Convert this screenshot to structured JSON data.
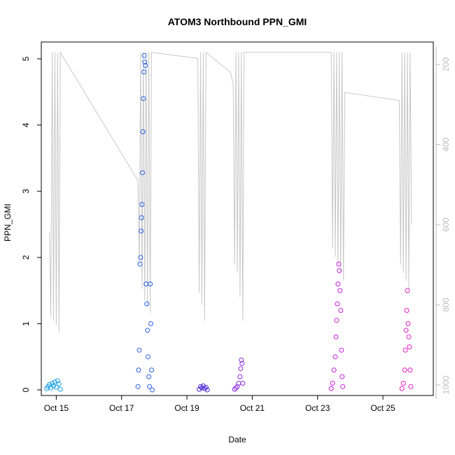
{
  "chart_data": {
    "type": "scatter",
    "title": "ATOM3 Northbound PPN_GMI",
    "xlabel": "Date",
    "ylabel": "PPN_GMI",
    "xlim": [
      "2014-10-14 13:00",
      "2014-10-26 13:00"
    ],
    "ylim": [
      0,
      5.25
    ],
    "y2lim": [
      1055,
      170
    ],
    "x_ticks": [
      {
        "label": "Oct 15",
        "date": "2014-10-15"
      },
      {
        "label": "Oct 17",
        "date": "2014-10-17"
      },
      {
        "label": "Oct 19",
        "date": "2014-10-19"
      },
      {
        "label": "Oct 21",
        "date": "2014-10-21"
      },
      {
        "label": "Oct 23",
        "date": "2014-10-23"
      },
      {
        "label": "Oct 25",
        "date": "2014-10-25"
      }
    ],
    "y_ticks": [
      "0",
      "1",
      "2",
      "3",
      "4",
      "5"
    ],
    "y2_ticks": [
      "200",
      "400",
      "600",
      "800",
      "1000"
    ],
    "grid": false,
    "series": [
      {
        "color": "#1aa0e6",
        "points": [
          {
            "date": "2014-10-14 17:00",
            "y": 0.02
          },
          {
            "date": "2014-10-14 18:00",
            "y": 0.05
          },
          {
            "date": "2014-10-14 19:00",
            "y": 0.08
          },
          {
            "date": "2014-10-14 20:00",
            "y": 0.03
          },
          {
            "date": "2014-10-14 21:00",
            "y": 0.1
          },
          {
            "date": "2014-10-14 22:00",
            "y": 0.06
          },
          {
            "date": "2014-10-14 23:00",
            "y": 0.12
          },
          {
            "date": "2014-10-15 00:00",
            "y": 0.04
          },
          {
            "date": "2014-10-15 01:00",
            "y": 0.14
          },
          {
            "date": "2014-10-15 02:00",
            "y": 0.09
          },
          {
            "date": "2014-10-15 03:00",
            "y": 0.01
          }
        ]
      },
      {
        "color": "#2a5fe6",
        "points": [
          {
            "date": "2014-10-17 12:00",
            "y": 0.05
          },
          {
            "date": "2014-10-17 12:30",
            "y": 0.3
          },
          {
            "date": "2014-10-17 13:00",
            "y": 0.6
          },
          {
            "date": "2014-10-17 13:30",
            "y": 1.9
          },
          {
            "date": "2014-10-17 14:00",
            "y": 2.0
          },
          {
            "date": "2014-10-17 14:20",
            "y": 2.4
          },
          {
            "date": "2014-10-17 14:40",
            "y": 2.6
          },
          {
            "date": "2014-10-17 15:00",
            "y": 2.8
          },
          {
            "date": "2014-10-17 15:20",
            "y": 3.28
          },
          {
            "date": "2014-10-17 15:40",
            "y": 3.9
          },
          {
            "date": "2014-10-17 16:00",
            "y": 4.4
          },
          {
            "date": "2014-10-17 16:20",
            "y": 4.8
          },
          {
            "date": "2014-10-17 16:40",
            "y": 5.05
          },
          {
            "date": "2014-10-17 17:00",
            "y": 4.95
          },
          {
            "date": "2014-10-17 17:30",
            "y": 4.9
          },
          {
            "date": "2014-10-17 18:00",
            "y": 1.6
          },
          {
            "date": "2014-10-17 18:30",
            "y": 1.3
          },
          {
            "date": "2014-10-17 19:00",
            "y": 0.9
          },
          {
            "date": "2014-10-17 19:30",
            "y": 0.5
          },
          {
            "date": "2014-10-17 20:00",
            "y": 0.2
          },
          {
            "date": "2014-10-17 20:30",
            "y": 0.05
          },
          {
            "date": "2014-10-17 21:00",
            "y": 1.6
          },
          {
            "date": "2014-10-17 21:30",
            "y": 1.0
          },
          {
            "date": "2014-10-17 22:00",
            "y": 0.3
          },
          {
            "date": "2014-10-17 22:30",
            "y": 0.0
          }
        ]
      },
      {
        "color": "#4a28d6",
        "points": [
          {
            "date": "2014-10-19 09:00",
            "y": 0.01
          },
          {
            "date": "2014-10-19 10:00",
            "y": 0.05
          },
          {
            "date": "2014-10-19 11:00",
            "y": 0.03
          },
          {
            "date": "2014-10-19 12:00",
            "y": 0.06
          },
          {
            "date": "2014-10-19 13:00",
            "y": 0.02
          },
          {
            "date": "2014-10-19 14:00",
            "y": 0.04
          },
          {
            "date": "2014-10-19 15:00",
            "y": 0.0
          }
        ]
      },
      {
        "color": "#8a2bd8",
        "points": [
          {
            "date": "2014-10-20 11:00",
            "y": 0.01
          },
          {
            "date": "2014-10-20 12:00",
            "y": 0.03
          },
          {
            "date": "2014-10-20 13:00",
            "y": 0.05
          },
          {
            "date": "2014-10-20 14:00",
            "y": 0.1
          },
          {
            "date": "2014-10-20 15:00",
            "y": 0.2
          },
          {
            "date": "2014-10-20 15:30",
            "y": 0.32
          },
          {
            "date": "2014-10-20 16:00",
            "y": 0.45
          },
          {
            "date": "2014-10-20 16:30",
            "y": 0.4
          },
          {
            "date": "2014-10-20 17:00",
            "y": 0.1
          }
        ]
      },
      {
        "color": "#c81ee0",
        "points": [
          {
            "date": "2014-10-23 10:00",
            "y": 0.02
          },
          {
            "date": "2014-10-23 11:00",
            "y": 0.1
          },
          {
            "date": "2014-10-23 12:00",
            "y": 0.3
          },
          {
            "date": "2014-10-23 13:00",
            "y": 0.5
          },
          {
            "date": "2014-10-23 13:30",
            "y": 0.8
          },
          {
            "date": "2014-10-23 14:00",
            "y": 1.05
          },
          {
            "date": "2014-10-23 14:30",
            "y": 1.3
          },
          {
            "date": "2014-10-23 15:00",
            "y": 1.6
          },
          {
            "date": "2014-10-23 15:30",
            "y": 1.9
          },
          {
            "date": "2014-10-23 16:00",
            "y": 1.8
          },
          {
            "date": "2014-10-23 16:30",
            "y": 1.5
          },
          {
            "date": "2014-10-23 17:00",
            "y": 1.2
          },
          {
            "date": "2014-10-23 17:30",
            "y": 0.6
          },
          {
            "date": "2014-10-23 18:00",
            "y": 0.2
          },
          {
            "date": "2014-10-23 18:30",
            "y": 0.05
          }
        ]
      },
      {
        "color": "#e81ec8",
        "points": [
          {
            "date": "2014-10-25 14:00",
            "y": 0.02
          },
          {
            "date": "2014-10-25 15:00",
            "y": 0.1
          },
          {
            "date": "2014-10-25 16:00",
            "y": 0.3
          },
          {
            "date": "2014-10-25 16:30",
            "y": 0.6
          },
          {
            "date": "2014-10-25 17:00",
            "y": 0.9
          },
          {
            "date": "2014-10-25 17:30",
            "y": 1.2
          },
          {
            "date": "2014-10-25 18:00",
            "y": 1.5
          },
          {
            "date": "2014-10-25 18:30",
            "y": 1.0
          },
          {
            "date": "2014-10-25 19:00",
            "y": 0.8
          },
          {
            "date": "2014-10-25 19:30",
            "y": 0.65
          },
          {
            "date": "2014-10-25 20:00",
            "y": 0.3
          },
          {
            "date": "2014-10-25 20:30",
            "y": 0.05
          }
        ]
      }
    ],
    "depth_series": {
      "color": "#c8c8c8",
      "points": [
        {
          "date": "2014-10-14 19:00",
          "y2": 620
        },
        {
          "date": "2014-10-14 20:00",
          "y2": 830
        },
        {
          "date": "2014-10-14 21:00",
          "y2": 170
        },
        {
          "date": "2014-10-14 22:00",
          "y2": 840
        },
        {
          "date": "2014-10-14 23:00",
          "y2": 170
        },
        {
          "date": "2014-10-15 00:00",
          "y2": 850
        },
        {
          "date": "2014-10-15 01:00",
          "y2": 170
        },
        {
          "date": "2014-10-15 02:00",
          "y2": 870
        },
        {
          "date": "2014-10-15 03:00",
          "y2": 170
        },
        {
          "date": "2014-10-17 12:00",
          "y2": 490
        },
        {
          "date": "2014-10-17 13:00",
          "y2": 700
        },
        {
          "date": "2014-10-17 14:00",
          "y2": 170
        },
        {
          "date": "2014-10-17 15:00",
          "y2": 760
        },
        {
          "date": "2014-10-17 16:00",
          "y2": 170
        },
        {
          "date": "2014-10-17 17:00",
          "y2": 790
        },
        {
          "date": "2014-10-17 18:00",
          "y2": 170
        },
        {
          "date": "2014-10-17 19:00",
          "y2": 800
        },
        {
          "date": "2014-10-17 20:00",
          "y2": 170
        },
        {
          "date": "2014-10-17 21:00",
          "y2": 820
        },
        {
          "date": "2014-10-17 22:00",
          "y2": 170
        },
        {
          "date": "2014-10-19 08:00",
          "y2": 185
        },
        {
          "date": "2014-10-19 09:00",
          "y2": 770
        },
        {
          "date": "2014-10-19 10:00",
          "y2": 170
        },
        {
          "date": "2014-10-19 11:00",
          "y2": 800
        },
        {
          "date": "2014-10-19 12:00",
          "y2": 170
        },
        {
          "date": "2014-10-19 13:00",
          "y2": 840
        },
        {
          "date": "2014-10-19 14:00",
          "y2": 170
        },
        {
          "date": "2014-10-20 08:00",
          "y2": 220
        },
        {
          "date": "2014-10-20 10:00",
          "y2": 250
        },
        {
          "date": "2014-10-20 11:00",
          "y2": 700
        },
        {
          "date": "2014-10-20 12:00",
          "y2": 170
        },
        {
          "date": "2014-10-20 13:00",
          "y2": 720
        },
        {
          "date": "2014-10-20 14:00",
          "y2": 170
        },
        {
          "date": "2014-10-20 15:00",
          "y2": 780
        },
        {
          "date": "2014-10-20 16:00",
          "y2": 170
        },
        {
          "date": "2014-10-20 17:00",
          "y2": 840
        },
        {
          "date": "2014-10-20 18:00",
          "y2": 170
        },
        {
          "date": "2014-10-23 10:00",
          "y2": 170
        },
        {
          "date": "2014-10-23 11:00",
          "y2": 660
        },
        {
          "date": "2014-10-23 12:00",
          "y2": 170
        },
        {
          "date": "2014-10-23 13:00",
          "y2": 680
        },
        {
          "date": "2014-10-23 14:00",
          "y2": 170
        },
        {
          "date": "2014-10-23 15:00",
          "y2": 700
        },
        {
          "date": "2014-10-23 16:00",
          "y2": 170
        },
        {
          "date": "2014-10-23 17:00",
          "y2": 720
        },
        {
          "date": "2014-10-23 18:00",
          "y2": 170
        },
        {
          "date": "2014-10-23 19:00",
          "y2": 740
        },
        {
          "date": "2014-10-23 20:00",
          "y2": 270
        },
        {
          "date": "2014-10-25 12:00",
          "y2": 290
        },
        {
          "date": "2014-10-25 13:00",
          "y2": 700
        },
        {
          "date": "2014-10-25 14:00",
          "y2": 170
        },
        {
          "date": "2014-10-25 15:00",
          "y2": 720
        },
        {
          "date": "2014-10-25 16:00",
          "y2": 170
        },
        {
          "date": "2014-10-25 17:00",
          "y2": 740
        },
        {
          "date": "2014-10-25 18:00",
          "y2": 170
        },
        {
          "date": "2014-10-25 19:00",
          "y2": 760
        },
        {
          "date": "2014-10-25 20:00",
          "y2": 170
        },
        {
          "date": "2014-10-25 21:00",
          "y2": 600
        }
      ]
    }
  }
}
